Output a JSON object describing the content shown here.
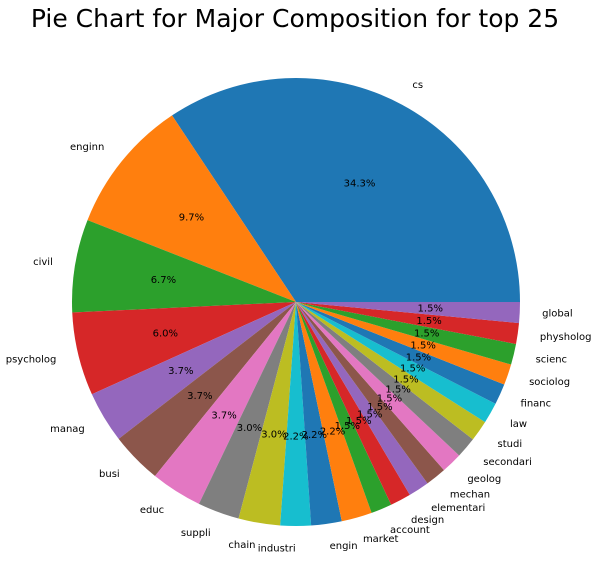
{
  "chart_data": {
    "type": "pie",
    "title": "Pie Chart for Major Composition for top 25",
    "start_angle_deg": 0,
    "direction": "counterclockwise",
    "slices": [
      {
        "label": "cs",
        "value": 34.3,
        "pct_label": "34.3%",
        "color": "#1f77b4"
      },
      {
        "label": "enginn",
        "value": 9.7,
        "pct_label": "9.7%",
        "color": "#ff7f0e"
      },
      {
        "label": "civil",
        "value": 6.7,
        "pct_label": "6.7%",
        "color": "#2ca02c"
      },
      {
        "label": "psycholog",
        "value": 6.0,
        "pct_label": "6.0%",
        "color": "#d62728"
      },
      {
        "label": "manag",
        "value": 3.7,
        "pct_label": "3.7%",
        "color": "#9467bd"
      },
      {
        "label": "busi",
        "value": 3.7,
        "pct_label": "3.7%",
        "color": "#8c564b"
      },
      {
        "label": "educ",
        "value": 3.7,
        "pct_label": "3.7%",
        "color": "#e377c2"
      },
      {
        "label": "suppli",
        "value": 3.0,
        "pct_label": "3.0%",
        "color": "#7f7f7f"
      },
      {
        "label": "chain",
        "value": 3.0,
        "pct_label": "3.0%",
        "color": "#bcbd22"
      },
      {
        "label": "industri",
        "value": 2.2,
        "pct_label": "2.2%",
        "color": "#17becf"
      },
      {
        "label": "engin",
        "value": 2.2,
        "pct_label": "2.2%",
        "color": "#1f77b4"
      },
      {
        "label": "market",
        "value": 2.2,
        "pct_label": "2.2%",
        "color": "#ff7f0e"
      },
      {
        "label": "account",
        "value": 1.5,
        "pct_label": "1.5%",
        "color": "#2ca02c"
      },
      {
        "label": "design",
        "value": 1.5,
        "pct_label": "1.5%",
        "color": "#d62728"
      },
      {
        "label": "elementari",
        "value": 1.5,
        "pct_label": "1.5%",
        "color": "#9467bd"
      },
      {
        "label": "mechan",
        "value": 1.5,
        "pct_label": "1.5%",
        "color": "#8c564b"
      },
      {
        "label": "geolog",
        "value": 1.5,
        "pct_label": "1.5%",
        "color": "#e377c2"
      },
      {
        "label": "secondari",
        "value": 1.5,
        "pct_label": "1.5%",
        "color": "#7f7f7f"
      },
      {
        "label": "studi",
        "value": 1.5,
        "pct_label": "1.5%",
        "color": "#bcbd22"
      },
      {
        "label": "law",
        "value": 1.5,
        "pct_label": "1.5%",
        "color": "#17becf"
      },
      {
        "label": "financ",
        "value": 1.5,
        "pct_label": "1.5%",
        "color": "#1f77b4"
      },
      {
        "label": "sociolog",
        "value": 1.5,
        "pct_label": "1.5%",
        "color": "#ff7f0e"
      },
      {
        "label": "scienc",
        "value": 1.5,
        "pct_label": "1.5%",
        "color": "#2ca02c"
      },
      {
        "label": "physholog",
        "value": 1.5,
        "pct_label": "1.5%",
        "color": "#d62728"
      },
      {
        "label": "global",
        "value": 1.5,
        "pct_label": "1.5%",
        "color": "#9467bd"
      }
    ]
  }
}
